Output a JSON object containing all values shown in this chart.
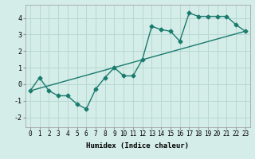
{
  "title": "",
  "xlabel": "Humidex (Indice chaleur)",
  "ylabel": "",
  "background_color": "#d4ede8",
  "grid_color": "#b8d8d2",
  "line_color": "#1a7a6e",
  "xlim": [
    -0.5,
    23.5
  ],
  "ylim": [
    -2.6,
    4.8
  ],
  "xticks": [
    0,
    1,
    2,
    3,
    4,
    5,
    6,
    7,
    8,
    9,
    10,
    11,
    12,
    13,
    14,
    15,
    16,
    17,
    18,
    19,
    20,
    21,
    22,
    23
  ],
  "yticks": [
    -2,
    -1,
    0,
    1,
    2,
    3,
    4
  ],
  "curve1_x": [
    0,
    1,
    2,
    3,
    4,
    5,
    6,
    7,
    8,
    9,
    10,
    11,
    12,
    13,
    14,
    15,
    16,
    17,
    18,
    19,
    20,
    21,
    22,
    23
  ],
  "curve1_y": [
    -0.4,
    0.4,
    -0.4,
    -0.7,
    -0.7,
    -1.2,
    -1.5,
    -0.3,
    0.4,
    1.0,
    0.5,
    0.5,
    1.5,
    3.5,
    3.3,
    3.2,
    2.6,
    4.3,
    4.1,
    4.1,
    4.1,
    4.1,
    3.6,
    3.2
  ],
  "curve2_x": [
    0,
    23
  ],
  "curve2_y": [
    -0.4,
    3.2
  ],
  "marker": "D",
  "markersize": 2.5,
  "linewidth": 1.0,
  "tick_fontsize": 5.5,
  "xlabel_fontsize": 6.5
}
